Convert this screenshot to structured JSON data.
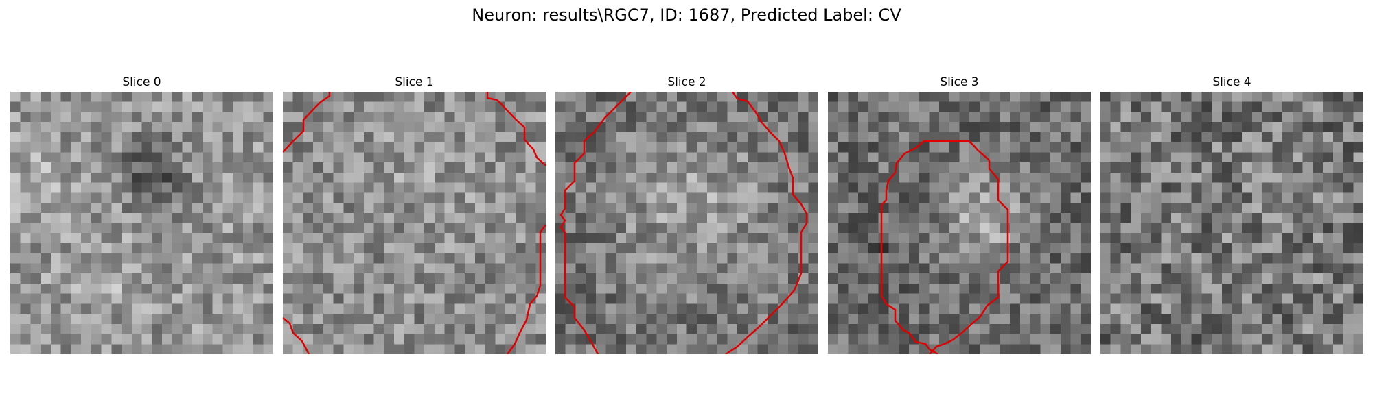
{
  "figure": {
    "title": "Neuron: results\\RGC7, ID: 1687, Predicted Label: CV"
  },
  "contour_color": "#e00000",
  "colormap": "gray",
  "panels": [
    {
      "title": "Slice 0",
      "contour": "none"
    },
    {
      "title": "Slice 1",
      "contour": "partial-edges"
    },
    {
      "title": "Slice 2",
      "contour": "large-outline"
    },
    {
      "title": "Slice 3",
      "contour": "closed-octagon"
    },
    {
      "title": "Slice 4",
      "contour": "none"
    }
  ]
}
